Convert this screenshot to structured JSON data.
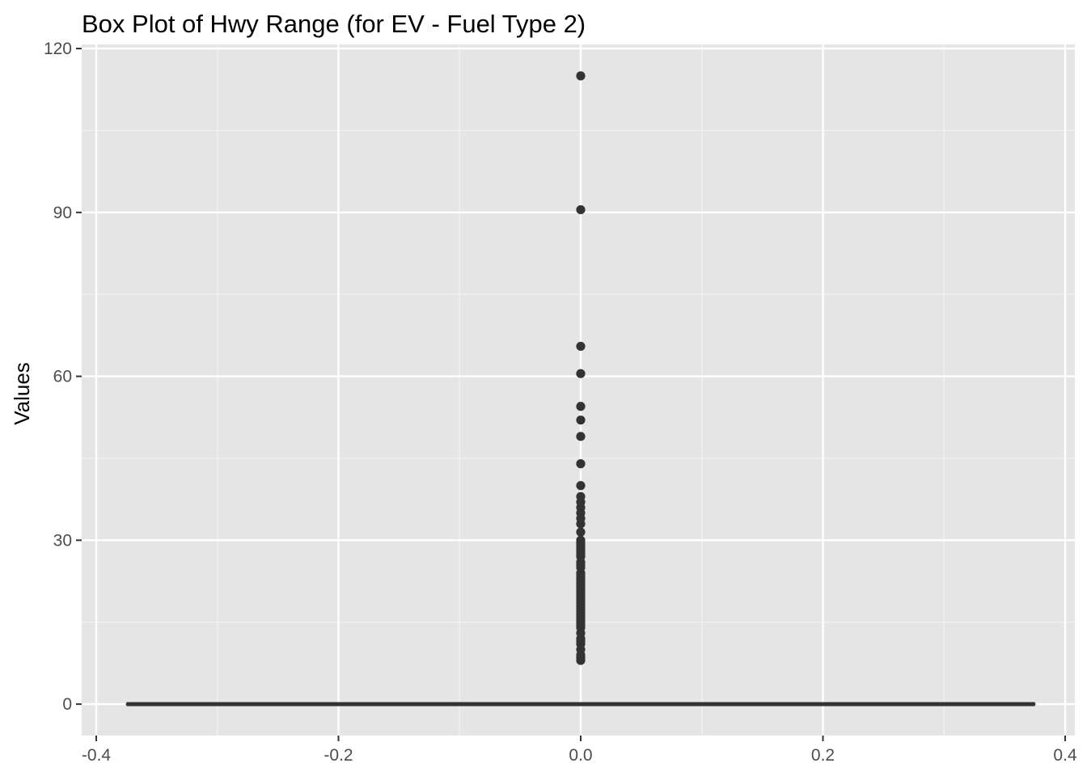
{
  "chart_data": {
    "type": "box",
    "title": "Box Plot of Hwy Range (for EV - Fuel Type 2)",
    "xlabel": "",
    "ylabel": "Values",
    "xlim": [
      -0.4,
      0.4
    ],
    "ylim": [
      -5.75,
      120.75
    ],
    "x_ticks": [
      {
        "value": -0.4,
        "label": "-0.4"
      },
      {
        "value": -0.2,
        "label": "-0.2"
      },
      {
        "value": 0.0,
        "label": "0.0"
      },
      {
        "value": 0.2,
        "label": "0.2"
      },
      {
        "value": 0.4,
        "label": "0.4"
      }
    ],
    "x_minor_breaks": [
      -0.3,
      -0.1,
      0.1,
      0.3
    ],
    "y_ticks": [
      {
        "value": 0,
        "label": "0"
      },
      {
        "value": 30,
        "label": "30"
      },
      {
        "value": 60,
        "label": "60"
      },
      {
        "value": 90,
        "label": "90"
      },
      {
        "value": 120,
        "label": "120"
      }
    ],
    "y_minor_breaks": [
      15,
      45,
      75,
      105
    ],
    "grid": true,
    "box": {
      "x": 0,
      "width": 0.75,
      "q1": 0,
      "median": 0,
      "q3": 0,
      "whisker_low": 0,
      "whisker_high": 0
    },
    "outliers": [
      8,
      8.5,
      9,
      10,
      11,
      11.5,
      12,
      13,
      14,
      14.5,
      15,
      15.5,
      16,
      16.5,
      17,
      17.5,
      18,
      18.5,
      19,
      19.5,
      20,
      20.5,
      21,
      21.5,
      22,
      22.5,
      23,
      23.5,
      24,
      25,
      25.5,
      26,
      27,
      27.5,
      28,
      28.5,
      29,
      29.5,
      30,
      31.5,
      33,
      34,
      35,
      36,
      37,
      38,
      40,
      44,
      49,
      52,
      54.5,
      60.5,
      65.5,
      90.5,
      115
    ],
    "colors": {
      "panel_background": "#e5e5e5",
      "grid_major": "#ffffff",
      "grid_minor": "#f2f2f2",
      "marks": "#333333",
      "tick_label": "#4d4d4d"
    }
  }
}
